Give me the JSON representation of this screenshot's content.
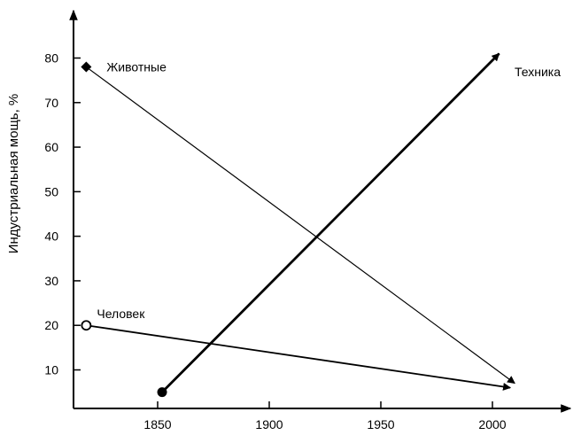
{
  "chart_data": {
    "type": "line",
    "title": "",
    "xlabel": "",
    "ylabel": "Индустриальная мощь, %",
    "xlim": [
      1815,
      2030
    ],
    "ylim": [
      0,
      90
    ],
    "x_ticks": [
      1850,
      1900,
      1950,
      2000
    ],
    "y_ticks": [
      10,
      20,
      30,
      40,
      50,
      60,
      70,
      80
    ],
    "grid": false,
    "legend": "none",
    "series": [
      {
        "name": "Животные",
        "marker": "filled-diamond",
        "x": [
          1818,
          2010
        ],
        "y": [
          78,
          7
        ],
        "arrow_end": true,
        "stroke_weight": "thin",
        "color": "#000000"
      },
      {
        "name": "Техника",
        "marker": "filled-circle",
        "x": [
          1852,
          2003
        ],
        "y": [
          5,
          81
        ],
        "arrow_end": true,
        "stroke_weight": "bold",
        "color": "#000000"
      },
      {
        "name": "Человек",
        "marker": "open-circle",
        "x": [
          1818,
          2008
        ],
        "y": [
          20,
          6
        ],
        "arrow_end": true,
        "stroke_weight": "medium",
        "color": "#000000"
      }
    ]
  }
}
